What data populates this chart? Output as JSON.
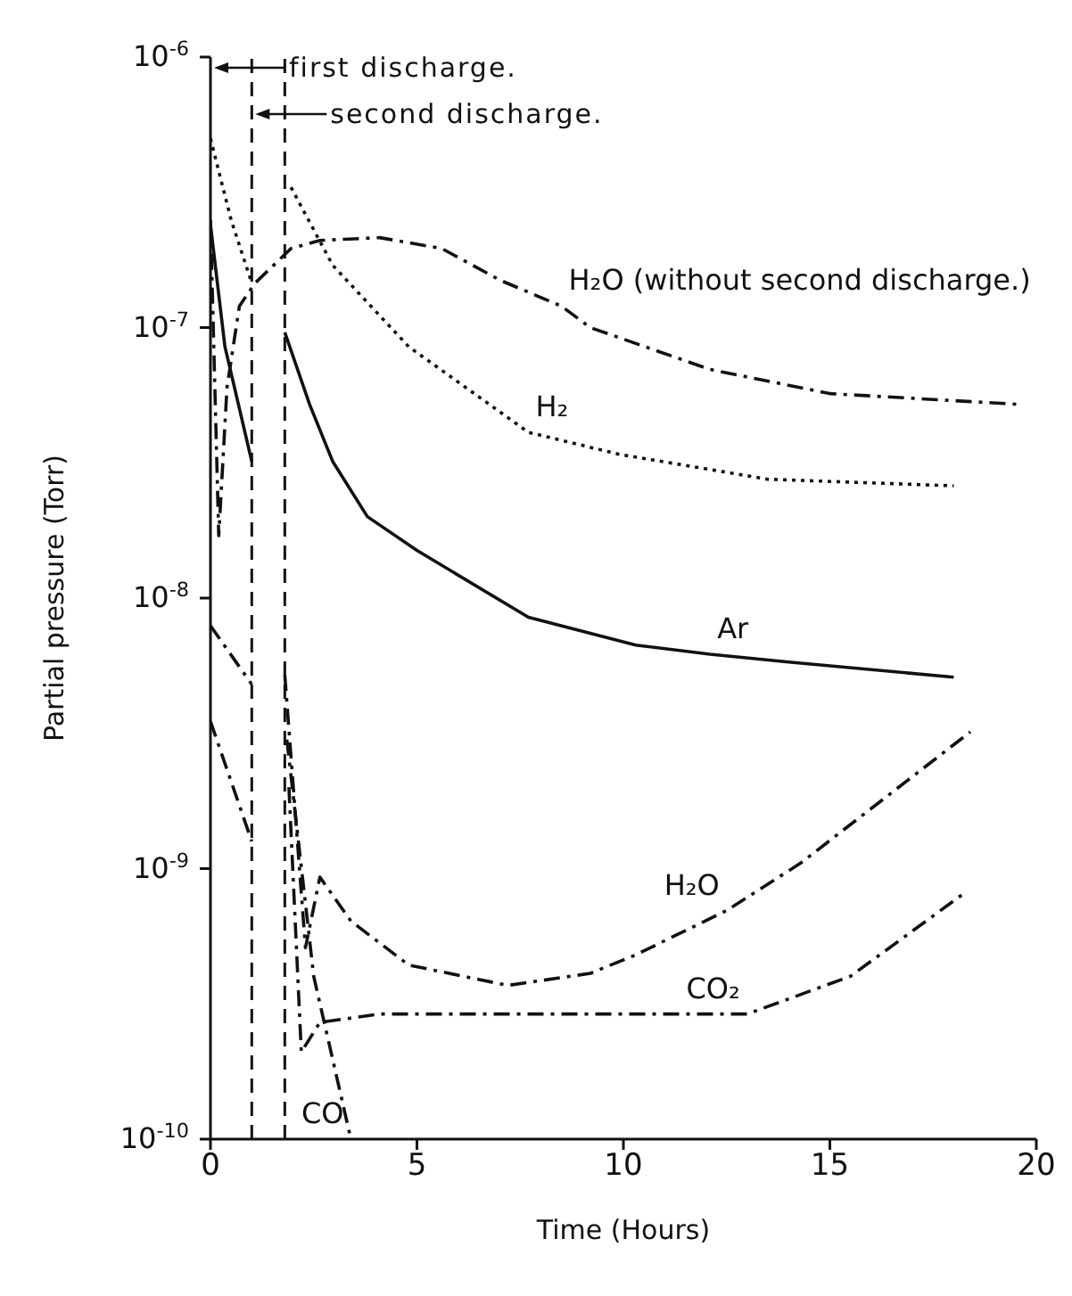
{
  "chart_data": {
    "type": "line",
    "xlabel": "Time (Hours)",
    "ylabel": "Partial pressure (Torr)",
    "log": "y",
    "marker": "none",
    "xlim": [
      0,
      20
    ],
    "xticks": [
      0,
      5,
      10,
      15,
      20
    ],
    "ylim": [
      1e-10,
      1e-06
    ],
    "yticks": [
      {
        "value": 1e-10,
        "label": "10$^{-10}$"
      },
      {
        "value": 1e-09,
        "label": "10$^{-9}$"
      },
      {
        "value": 1e-08,
        "label": "10$^{-8}$"
      },
      {
        "value": 1e-07,
        "label": "10$^{-7}$"
      },
      {
        "value": 1e-06,
        "label": "10$^{-6}$"
      }
    ],
    "series": [
      {
        "color": "#111111",
        "line_style": "solid",
        "x": [
          0,
          0.35,
          1.0
        ],
        "values": [
          2.4e-07,
          8.5e-08,
          3.2e-08
        ]
      },
      {
        "color": "#111111",
        "line_style": "solid",
        "x": [
          1.8,
          2.4,
          2.96,
          3.8,
          5,
          7.7,
          10.3,
          12.1,
          14,
          18
        ],
        "values": [
          9.6e-08,
          5.2e-08,
          3.2e-08,
          2e-08,
          1.5e-08,
          8.5e-09,
          6.7e-09,
          6.2e-09,
          5.8e-09,
          5.1e-09
        ]
      },
      {
        "color": "#111111",
        "line_style": "dotted",
        "x": [
          0,
          0.5,
          1.0
        ],
        "values": [
          5e-07,
          2.5e-07,
          1.46e-07
        ]
      },
      {
        "color": "#111111",
        "line_style": "dotted",
        "x": [
          1.95,
          2.96,
          4.8,
          7.7,
          9.9,
          13.5,
          18
        ],
        "values": [
          3.3e-07,
          1.7e-07,
          8.5e-08,
          4.1e-08,
          3.4e-08,
          2.75e-08,
          2.6e-08
        ]
      },
      {
        "color": "#111111",
        "line_style": "dashed",
        "x": [
          0,
          0.2,
          0.4,
          0.7,
          1.08,
          1.95,
          2.65,
          4.1,
          5.6,
          7,
          8.5,
          9.2,
          12.1,
          15,
          19.6
        ],
        "values": [
          2.5e-07,
          1.7e-08,
          6e-08,
          1.2e-07,
          1.46e-07,
          1.96e-07,
          2.1e-07,
          2.15e-07,
          1.96e-07,
          1.5e-07,
          1.2e-07,
          1e-07,
          7e-08,
          5.7e-08,
          5.2e-08
        ]
      },
      {
        "color": "#111111",
        "line_style": "dashed",
        "x": [
          0,
          1.0
        ],
        "values": [
          7.9e-09,
          4.8e-09
        ]
      },
      {
        "color": "#111111",
        "line_style": "dashed",
        "x": [
          1.8,
          2.3,
          2.65,
          3.4,
          4.8,
          7.2,
          9.2,
          10.3,
          12.5,
          14.3,
          18.4
        ],
        "values": [
          5.2e-09,
          5.1e-10,
          9.3e-10,
          6.4e-10,
          4.4e-10,
          3.7e-10,
          4.1e-10,
          4.8e-10,
          7e-10,
          1.05e-09,
          3.2e-09
        ]
      },
      {
        "color": "#111111",
        "line_style": "dashed",
        "x": [
          1.9,
          2.2,
          2.65,
          4.1,
          8,
          13,
          15.5,
          18.2
        ],
        "values": [
          2e-09,
          2.1e-10,
          2.7e-10,
          2.9e-10,
          2.9e-10,
          2.9e-10,
          4e-10,
          8e-10
        ]
      },
      {
        "color": "#111111",
        "line_style": "dashed",
        "x": [
          0,
          1.0
        ],
        "values": [
          3.5e-09,
          1.26e-09
        ]
      },
      {
        "color": "#111111",
        "line_style": "dashed",
        "x": [
          1.85,
          2.5,
          3.4
        ],
        "values": [
          3e-09,
          4e-10,
          1e-10
        ]
      }
    ],
    "ref_lines": [
      {
        "axis": "x",
        "value": 1,
        "label": "second discharge.",
        "line_style": "dashed"
      },
      {
        "axis": "x",
        "value": 1.8,
        "line_style": "dashed"
      }
    ],
    "annotations": [
      "first discharge.",
      {
        "text": "H₂O (without second discharge.)",
        "x": 8.5,
        "y": 1.2e-07
      },
      {
        "text": "H₂",
        "x": 7.7,
        "y": 4.1e-08
      },
      {
        "text": "Ar",
        "x": 12.1,
        "y": 6.2e-09
      },
      {
        "text": "H₂O",
        "x": 12.5,
        "y": 7e-10
      },
      {
        "text": "CO₂",
        "x": 13,
        "y": 2.9e-10
      },
      {
        "text": "CO",
        "x": 3.4,
        "y": 1e-10
      }
    ]
  }
}
